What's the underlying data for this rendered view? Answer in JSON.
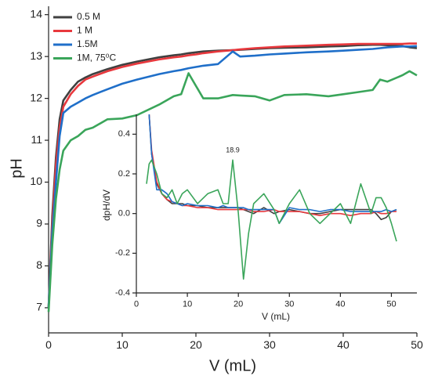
{
  "chart_data": [
    {
      "type": "line",
      "xlabel": "V (mL)",
      "ylabel": "pH",
      "x": [
        0,
        0.5,
        1,
        1.5,
        2,
        3,
        4,
        5,
        6,
        8,
        10,
        12,
        15,
        17,
        18,
        19,
        20,
        21,
        23,
        25,
        26,
        28,
        30,
        32,
        35,
        38,
        40,
        42,
        44,
        45,
        46,
        48,
        49,
        50
      ],
      "xlim": [
        0,
        50
      ],
      "xticks": [
        0,
        10,
        20,
        30,
        40,
        50
      ],
      "ylim": [
        6.4,
        14.2
      ],
      "yticks": [
        7,
        8,
        9,
        10,
        11,
        12,
        13,
        14
      ],
      "legend": "upper left",
      "series": [
        {
          "name": "0.5 M",
          "color": "#404040",
          "values": [
            7.0,
            9.2,
            10.6,
            11.5,
            11.95,
            12.2,
            12.4,
            12.5,
            12.58,
            12.7,
            12.8,
            12.88,
            12.98,
            13.03,
            13.05,
            13.08,
            13.1,
            13.12,
            13.14,
            13.15,
            13.16,
            13.18,
            13.2,
            13.21,
            13.22,
            13.24,
            13.25,
            13.27,
            13.28,
            13.28,
            13.27,
            13.25,
            13.22,
            13.2
          ]
        },
        {
          "name": "1 M",
          "color": "#e8383d",
          "values": [
            7.0,
            9.0,
            10.4,
            11.3,
            11.8,
            12.1,
            12.3,
            12.45,
            12.52,
            12.65,
            12.75,
            12.83,
            12.93,
            12.98,
            13.0,
            13.03,
            13.05,
            13.08,
            13.12,
            13.15,
            13.17,
            13.2,
            13.22,
            13.24,
            13.26,
            13.28,
            13.29,
            13.3,
            13.3,
            13.3,
            13.3,
            13.3,
            13.31,
            13.31
          ]
        },
        {
          "name": "1.5M",
          "color": "#1f6fc9",
          "values": [
            7.0,
            8.8,
            10.0,
            11.1,
            11.65,
            11.8,
            11.9,
            12.0,
            12.08,
            12.22,
            12.35,
            12.45,
            12.58,
            12.65,
            12.68,
            12.72,
            12.75,
            12.78,
            12.82,
            13.12,
            13.0,
            13.02,
            13.05,
            13.07,
            13.1,
            13.12,
            13.14,
            13.16,
            13.18,
            13.2,
            13.22,
            13.24,
            13.24,
            13.25
          ]
        },
        {
          "name": "1M, 75⁰C",
          "color": "#3aa55a",
          "values": [
            6.9,
            8.5,
            9.6,
            10.3,
            10.75,
            11.0,
            11.1,
            11.25,
            11.3,
            11.5,
            11.52,
            11.6,
            11.85,
            12.05,
            12.1,
            12.6,
            12.3,
            12.0,
            12.0,
            12.08,
            12.07,
            12.05,
            11.95,
            12.08,
            12.1,
            12.05,
            12.1,
            12.15,
            12.2,
            12.45,
            12.4,
            12.55,
            12.65,
            12.55
          ]
        }
      ]
    },
    {
      "type": "line",
      "xlabel": "V (mL)",
      "ylabel": "dpH/dV",
      "x": [
        2,
        2.5,
        3,
        4,
        5,
        6,
        7,
        8,
        9,
        10,
        12,
        14,
        16,
        17,
        18,
        18.9,
        20,
        21,
        22,
        23,
        25,
        27,
        28,
        30,
        32,
        34,
        36,
        38,
        40,
        42,
        44,
        46,
        47,
        48,
        49,
        50,
        51
      ],
      "xlim": [
        0,
        55
      ],
      "xticks": [
        0,
        10,
        20,
        30,
        40,
        50
      ],
      "ylim": [
        -0.4,
        0.5
      ],
      "yticks": [
        -0.4,
        -0.2,
        {
          "value": 0,
          "label": "0.0"
        },
        0.2,
        0.4
      ],
      "annotations": [
        {
          "text": "18.9",
          "x": 18.9,
          "y": 0.27
        }
      ],
      "series": [
        {
          "color": "#404040",
          "values": [
            null,
            0.5,
            0.3,
            0.15,
            0.1,
            0.07,
            0.05,
            0.05,
            0.05,
            0.04,
            0.04,
            0.03,
            0.03,
            0.03,
            0.03,
            0.03,
            0.03,
            0.02,
            0.01,
            0.0,
            0.03,
            0.0,
            0.01,
            0.02,
            0.01,
            0.0,
            0.0,
            0.01,
            0.02,
            0.02,
            0.02,
            0.02,
            0.0,
            -0.03,
            -0.02,
            0.01,
            0.02
          ]
        },
        {
          "color": "#e8383d",
          "values": [
            null,
            0.5,
            0.32,
            0.16,
            0.1,
            0.07,
            0.06,
            0.05,
            0.04,
            0.04,
            0.03,
            0.03,
            0.02,
            0.02,
            0.02,
            0.02,
            0.02,
            0.02,
            0.02,
            0.01,
            0.01,
            0.02,
            0.01,
            0.01,
            0.01,
            0.0,
            -0.01,
            0.0,
            0.0,
            -0.01,
            0.0,
            0.0,
            0.01,
            0.0,
            0.0,
            0.01,
            0.01
          ]
        },
        {
          "color": "#1f6fc9",
          "values": [
            null,
            0.5,
            0.3,
            0.12,
            0.12,
            0.1,
            0.06,
            0.05,
            0.04,
            0.05,
            0.04,
            0.04,
            0.03,
            0.04,
            0.03,
            0.03,
            0.03,
            0.03,
            0.02,
            0.02,
            0.02,
            0.02,
            -0.05,
            0.03,
            0.02,
            0.02,
            0.01,
            0.02,
            0.02,
            0.01,
            0.01,
            0.01,
            0.01,
            0.01,
            0.02,
            0.01,
            0.02
          ]
        },
        {
          "color": "#3aa55a",
          "values": [
            0.15,
            0.25,
            0.27,
            0.2,
            0.1,
            0.08,
            0.12,
            0.05,
            0.1,
            0.12,
            0.05,
            0.1,
            0.12,
            0.05,
            0.05,
            0.27,
            0.0,
            -0.33,
            -0.1,
            0.05,
            0.1,
            0.02,
            -0.05,
            0.05,
            0.12,
            0.0,
            -0.05,
            0.0,
            0.05,
            -0.05,
            0.15,
            0.0,
            0.08,
            0.08,
            0.03,
            -0.05,
            -0.14
          ]
        }
      ]
    }
  ]
}
